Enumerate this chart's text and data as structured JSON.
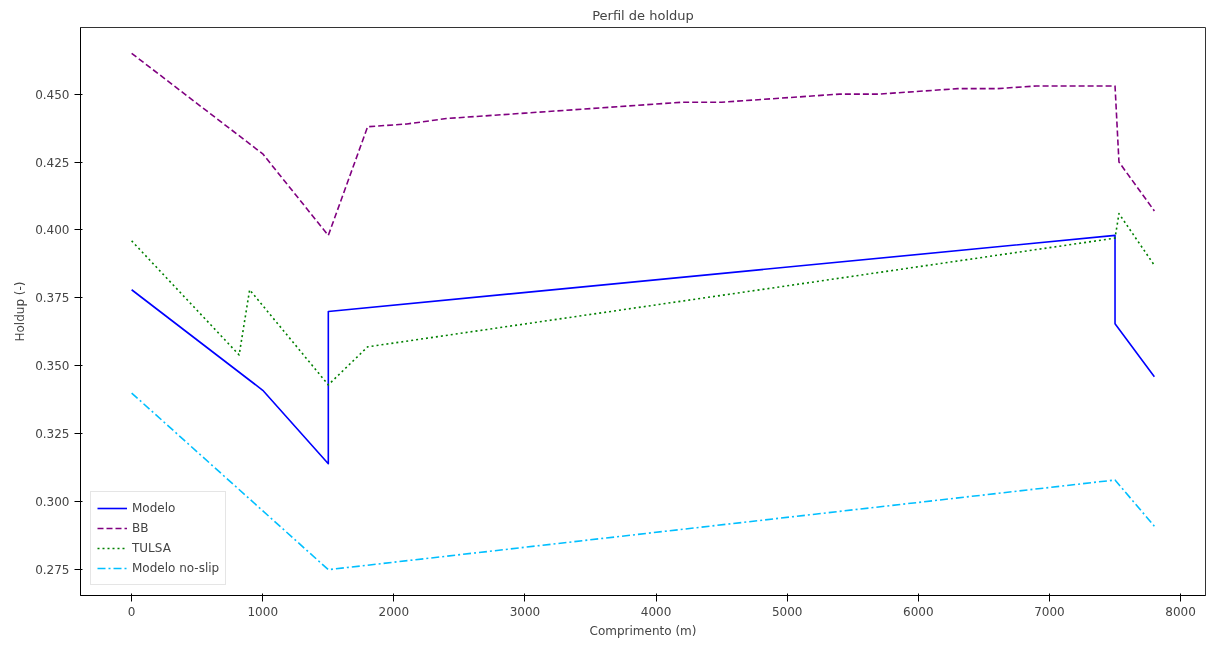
{
  "chart_data": {
    "type": "line",
    "title": "Perfil de holdup",
    "xlabel": "Comprimento (m)",
    "ylabel": "Holdup (-)",
    "xlim": [
      -390,
      8190
    ],
    "ylim": [
      0.2655,
      0.4745
    ],
    "xticks": [
      0,
      1000,
      2000,
      3000,
      4000,
      5000,
      6000,
      7000,
      8000
    ],
    "yticks": [
      {
        "value": 0.275,
        "label": "0.275"
      },
      {
        "value": 0.3,
        "label": "0.300"
      },
      {
        "value": 0.325,
        "label": "0.325"
      },
      {
        "value": 0.35,
        "label": "0.350"
      },
      {
        "value": 0.375,
        "label": "0.375"
      },
      {
        "value": 0.4,
        "label": "0.400"
      },
      {
        "value": 0.425,
        "label": "0.425"
      },
      {
        "value": 0.45,
        "label": "0.450"
      }
    ],
    "grid": false,
    "legend": "bottom left",
    "marker": "none",
    "series": [
      {
        "name": "Modelo",
        "color": "#0000ff",
        "line_style": "solid",
        "x": [
          0,
          1000,
          1500,
          1500,
          7500,
          7500,
          7800
        ],
        "values": [
          0.378,
          0.341,
          0.314,
          0.37,
          0.398,
          0.3655,
          0.346
        ]
      },
      {
        "name": "BB",
        "color": "#800080",
        "line_style": "dashed",
        "x": [
          0,
          1000,
          1500,
          1800,
          2100,
          2400,
          3000,
          4200,
          4500,
          5400,
          5700,
          6300,
          6600,
          6900,
          7500,
          7530,
          7800
        ],
        "values": [
          0.465,
          0.428,
          0.398,
          0.438,
          0.439,
          0.441,
          0.443,
          0.447,
          0.447,
          0.45,
          0.45,
          0.452,
          0.452,
          0.453,
          0.453,
          0.425,
          0.407
        ]
      },
      {
        "name": "TULSA",
        "color": "#008000",
        "line_style": "dotted",
        "x": [
          0,
          820,
          900,
          1500,
          1800,
          7500,
          7530,
          7800
        ],
        "values": [
          0.396,
          0.354,
          0.378,
          0.343,
          0.357,
          0.397,
          0.406,
          0.387
        ]
      },
      {
        "name": "Modelo no-slip",
        "color": "#00bfff",
        "line_style": "dashdot",
        "x": [
          0,
          1500,
          7500,
          7800
        ],
        "values": [
          0.34,
          0.275,
          0.308,
          0.291
        ]
      }
    ]
  }
}
